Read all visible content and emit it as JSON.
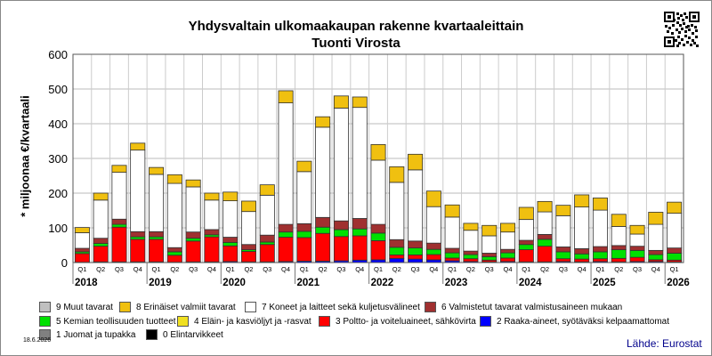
{
  "title_line1": "Yhdysvaltain ulkomaakaupan rakenne kvartaaleittain",
  "title_line2": "Tuonti Virosta",
  "date": "18.6.2026",
  "source": "Lähde: Eurostat",
  "chart_data": {
    "type": "bar",
    "stacked": true,
    "ylabel": "* miljoonaa €/kvartaali",
    "ylim": [
      0,
      600
    ],
    "yticks": [
      0,
      100,
      200,
      300,
      400,
      500,
      600
    ],
    "grid": true,
    "categories": [
      "2018 Q1",
      "2018 Q2",
      "2018 Q3",
      "2018 Q4",
      "2019 Q1",
      "2019 Q2",
      "2019 Q3",
      "2019 Q4",
      "2020 Q1",
      "2020 Q2",
      "2020 Q3",
      "2020 Q4",
      "2021 Q1",
      "2021 Q2",
      "2021 Q3",
      "2021 Q4",
      "2022 Q1",
      "2022 Q2",
      "2022 Q3",
      "2022 Q4",
      "2023 Q1",
      "2023 Q2",
      "2023 Q3",
      "2023 Q4",
      "2024 Q1",
      "2024 Q2",
      "2024 Q3",
      "2024 Q4",
      "2025 Q1",
      "2025 Q2",
      "2025 Q3",
      "2025 Q4",
      "2026 Q1"
    ],
    "quarter_labels": [
      "Q1",
      "Q2",
      "Q3",
      "Q4",
      "Q1",
      "Q2",
      "Q3",
      "Q4",
      "Q1",
      "Q2",
      "Q3",
      "Q4",
      "Q1",
      "Q2",
      "Q3",
      "Q4",
      "Q1",
      "Q2",
      "Q3",
      "Q4",
      "Q1",
      "Q2",
      "Q3",
      "Q4",
      "Q1",
      "Q2",
      "Q3",
      "Q4",
      "Q1",
      "Q2",
      "Q3",
      "Q4",
      "Q1"
    ],
    "years": [
      "2018",
      "2019",
      "2020",
      "2021",
      "2022",
      "2023",
      "2024",
      "2025",
      "2026"
    ],
    "series": [
      {
        "name": "0 Elintarvikkeet",
        "color": "#000000",
        "values": [
          0,
          0,
          0,
          0,
          0,
          0,
          0,
          0,
          0,
          0,
          0,
          0,
          0,
          0,
          0,
          0,
          0,
          0,
          0,
          0,
          0,
          0,
          0,
          0,
          0,
          0,
          0,
          0,
          0,
          0,
          0,
          0,
          0
        ]
      },
      {
        "name": "1 Juomat ja tupakka",
        "color": "#808080",
        "values": [
          0,
          0,
          0,
          0,
          0,
          0,
          0,
          0,
          0,
          0,
          0,
          0,
          0,
          0,
          0,
          0,
          0,
          0,
          0,
          0,
          0,
          0,
          0,
          0,
          0,
          0,
          0,
          0,
          0,
          0,
          0,
          0,
          0
        ]
      },
      {
        "name": "2 Raaka-aineet, syötäväksi kelpaamattomat",
        "color": "#0000ff",
        "values": [
          1,
          2,
          2,
          2,
          2,
          1,
          2,
          2,
          3,
          2,
          2,
          3,
          4,
          4,
          5,
          7,
          8,
          12,
          10,
          8,
          5,
          3,
          2,
          3,
          2,
          2,
          3,
          2,
          3,
          2,
          3,
          3,
          2
        ]
      },
      {
        "name": "3 Poltto- ja voiteluaineet, sähkövirta",
        "color": "#ff0000",
        "values": [
          25,
          45,
          100,
          65,
          65,
          20,
          60,
          72,
          45,
          30,
          50,
          70,
          68,
          80,
          70,
          70,
          55,
          10,
          12,
          15,
          8,
          8,
          5,
          10,
          35,
          45,
          8,
          8,
          8,
          10,
          12,
          5,
          5
        ]
      },
      {
        "name": "4 Eläin- ja kasviöljyt ja -rasvat",
        "color": "#f0e020",
        "values": [
          0,
          0,
          0,
          0,
          0,
          0,
          0,
          0,
          0,
          0,
          0,
          0,
          0,
          0,
          0,
          0,
          0,
          0,
          0,
          0,
          0,
          0,
          0,
          0,
          0,
          0,
          0,
          0,
          0,
          0,
          0,
          0,
          0
        ]
      },
      {
        "name": "5 Kemian teollisuuden tuotteet",
        "color": "#00e000",
        "values": [
          5,
          8,
          8,
          7,
          7,
          10,
          8,
          6,
          10,
          5,
          7,
          15,
          18,
          18,
          20,
          20,
          22,
          22,
          20,
          15,
          15,
          12,
          10,
          15,
          15,
          20,
          20,
          15,
          20,
          25,
          20,
          15,
          20
        ]
      },
      {
        "name": "6 Valmistetut tavarat valmistusaineen mukaan",
        "color": "#a03030",
        "values": [
          10,
          15,
          15,
          15,
          15,
          12,
          18,
          15,
          15,
          15,
          20,
          22,
          22,
          28,
          25,
          30,
          25,
          22,
          20,
          18,
          13,
          10,
          10,
          10,
          12,
          14,
          14,
          15,
          15,
          12,
          12,
          12,
          15
        ]
      },
      {
        "name": "7 Koneet ja laitteet sekä kuljetusvälineet",
        "color": "#ffffff",
        "values": [
          45,
          110,
          135,
          235,
          165,
          185,
          130,
          85,
          105,
          95,
          115,
          350,
          150,
          260,
          325,
          320,
          185,
          165,
          205,
          105,
          90,
          60,
          50,
          50,
          60,
          65,
          90,
          120,
          105,
          55,
          35,
          75,
          100
        ]
      },
      {
        "name": "8 Erinäiset valmiit tavarat",
        "color": "#f0c010",
        "values": [
          15,
          20,
          20,
          20,
          20,
          25,
          20,
          20,
          25,
          30,
          30,
          35,
          30,
          30,
          35,
          30,
          45,
          45,
          45,
          45,
          35,
          20,
          30,
          25,
          35,
          30,
          30,
          35,
          35,
          35,
          25,
          35,
          32
        ]
      },
      {
        "name": "9 Muut tavarat",
        "color": "#c0c0c0",
        "values": [
          0,
          0,
          0,
          0,
          0,
          0,
          0,
          0,
          0,
          0,
          0,
          0,
          0,
          0,
          0,
          0,
          0,
          0,
          0,
          0,
          0,
          0,
          0,
          0,
          0,
          0,
          0,
          0,
          0,
          0,
          0,
          0,
          0
        ]
      }
    ]
  }
}
